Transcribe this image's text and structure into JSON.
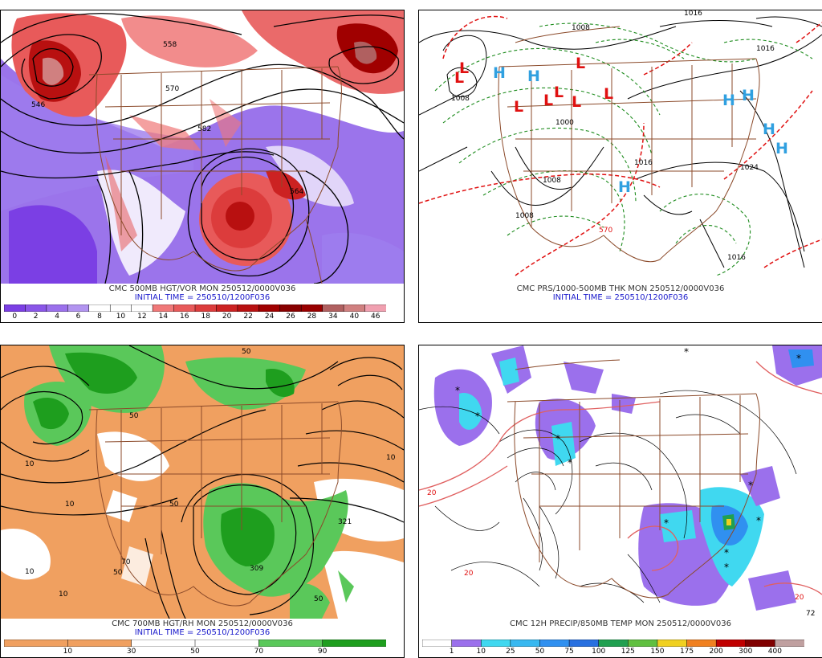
{
  "panels": [
    {
      "id": "p1",
      "caption": "CMC 500MB HGT/VOR MON 250512/0000V036",
      "initial_time": "INITIAL TIME = 250510/1200F036",
      "colorbar": {
        "labels": [
          "0",
          "2",
          "4",
          "6",
          "8",
          "10",
          "12",
          "14",
          "16",
          "18",
          "20",
          "22",
          "24",
          "26",
          "28",
          "34",
          "40",
          "46"
        ],
        "colors": [
          "#7b3fe4",
          "#8a56e8",
          "#9b70ec",
          "#b294f0",
          "#ffffff",
          "#ffffff",
          "#ffffff",
          "#f07878",
          "#e85a5a",
          "#dc3c3c",
          "#cc2222",
          "#b81010",
          "#a00000",
          "#880000",
          "#990000",
          "#b06060",
          "#d08080",
          "#f0a0b0"
        ]
      },
      "contour_labels": [
        "558",
        "546",
        "570",
        "582",
        "564"
      ]
    },
    {
      "id": "p2",
      "caption": "CMC PRS/1000-500MB THK MON 250512/0000V036",
      "initial_time": "INITIAL TIME = 250510/1200F036",
      "contour_labels": [
        "1008",
        "1000",
        "1016",
        "1008",
        "1024",
        "1008",
        "570",
        "1016",
        "1008",
        "1016",
        "1016"
      ]
    },
    {
      "id": "p3",
      "caption": "CMC 700MB HGT/RH MON 250512/0000V036",
      "initial_time": "INITIAL TIME = 250510/1200F036",
      "colorbar": {
        "labels": [
          "10",
          "30",
          "50",
          "70",
          "90"
        ],
        "colors": [
          "#f0a060",
          "#f0a060",
          "#ffffff",
          "#ffffff",
          "#5ac85a",
          "#1e9e1e"
        ]
      },
      "contour_labels": [
        "10",
        "50",
        "10",
        "50",
        "70",
        "10",
        "10",
        "321",
        "309",
        "50",
        "10",
        "50",
        "50"
      ]
    },
    {
      "id": "p4",
      "caption": "CMC 12H PRECIP/850MB TEMP MON 250512/0000V036",
      "colorbar": {
        "labels": [
          "1",
          "10",
          "25",
          "50",
          "75",
          "100",
          "125",
          "150",
          "175",
          "200",
          "300",
          "400"
        ],
        "colors": [
          "#ffffff",
          "#9b70ec",
          "#40d8f0",
          "#38b8f0",
          "#3090f0",
          "#2870e0",
          "#20a050",
          "#60c040",
          "#f0d020",
          "#f08020",
          "#c00000",
          "#800000",
          "#c0a0a0"
        ]
      },
      "contour_labels": [
        "20",
        "20",
        "20",
        "72"
      ]
    }
  ],
  "pressure_centers": [
    {
      "type": "L",
      "color": "#e01010"
    },
    {
      "type": "L",
      "color": "#e01010"
    },
    {
      "type": "L",
      "color": "#e01010"
    },
    {
      "type": "L",
      "color": "#e01010"
    },
    {
      "type": "L",
      "color": "#e01010"
    },
    {
      "type": "L",
      "color": "#e01010"
    },
    {
      "type": "L",
      "color": "#e01010"
    },
    {
      "type": "L",
      "color": "#e01010"
    },
    {
      "type": "H",
      "color": "#30a0e0"
    },
    {
      "type": "H",
      "color": "#30a0e0"
    },
    {
      "type": "H",
      "color": "#30a0e0"
    },
    {
      "type": "H",
      "color": "#30a0e0"
    },
    {
      "type": "H",
      "color": "#30a0e0"
    },
    {
      "type": "H",
      "color": "#30a0e0"
    },
    {
      "type": "H",
      "color": "#30a0e0"
    }
  ]
}
